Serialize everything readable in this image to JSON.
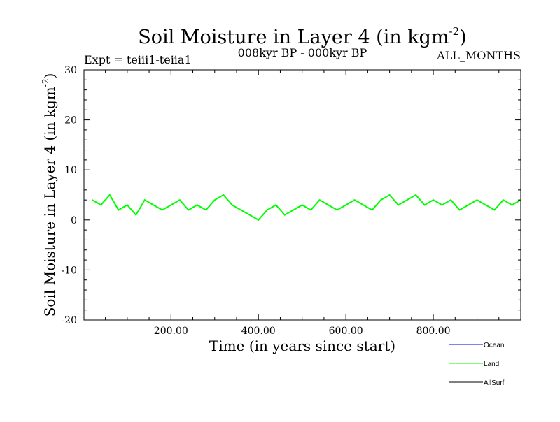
{
  "chart_data": {
    "type": "line",
    "title_main": "Soil Moisture in Layer 4 (in kgm",
    "title_sup": "-2",
    "title_close": ")",
    "subtitle_left": "Expt = teiii1-teiia1",
    "subtitle_center": "008kyr BP - 000kyr BP",
    "subtitle_right": "ALL_MONTHS",
    "xlabel": "Time (in years since start)",
    "ylabel_main": "Soil Moisture in Layer 4 (in kgm",
    "ylabel_sup": "-2",
    "ylabel_close": ")",
    "xlim": [
      1,
      1000
    ],
    "ylim": [
      -20,
      30
    ],
    "x_ticks": [
      200,
      400,
      600,
      800
    ],
    "x_tick_labels": [
      "200.00",
      "400.00",
      "600.00",
      "800.00"
    ],
    "y_ticks": [
      -20,
      -10,
      0,
      10,
      20,
      30
    ],
    "y_tick_labels": [
      "-20",
      "-10",
      "0",
      "10",
      "20",
      "30"
    ],
    "grid": false,
    "legend_placement": "below-right",
    "series": [
      {
        "name": "Ocean",
        "color": "#0000ff",
        "x": [],
        "values": []
      },
      {
        "name": "Land",
        "color": "#00ff00",
        "x": [
          20,
          40,
          60,
          80,
          100,
          120,
          140,
          160,
          180,
          200,
          220,
          240,
          260,
          280,
          300,
          320,
          340,
          360,
          380,
          400,
          420,
          440,
          460,
          480,
          500,
          520,
          540,
          560,
          580,
          600,
          620,
          640,
          660,
          680,
          700,
          720,
          740,
          760,
          780,
          800,
          820,
          840,
          860,
          880,
          900,
          920,
          940,
          960,
          980,
          1000
        ],
        "values": [
          4,
          3,
          5,
          2,
          3,
          1,
          4,
          3,
          2,
          3,
          4,
          2,
          3,
          2,
          4,
          5,
          3,
          2,
          1,
          0,
          2,
          3,
          1,
          2,
          3,
          2,
          4,
          3,
          2,
          3,
          4,
          3,
          2,
          4,
          5,
          3,
          4,
          5,
          3,
          4,
          3,
          4,
          2,
          3,
          4,
          3,
          2,
          4,
          3,
          4
        ]
      },
      {
        "name": "AllSurf",
        "color": "#000000",
        "x": [],
        "values": []
      }
    ]
  }
}
